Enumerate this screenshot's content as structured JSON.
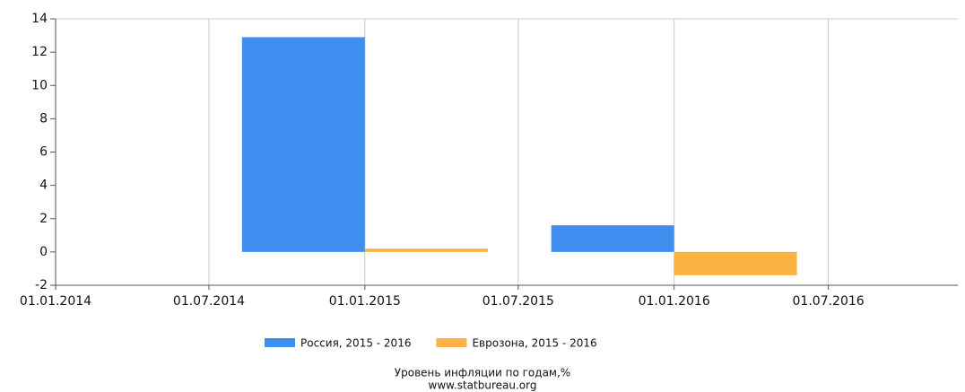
{
  "chart_data": {
    "type": "bar",
    "x": [
      "01.01.2015",
      "01.01.2016"
    ],
    "series": [
      {
        "name": "Россия, 2015 - 2016",
        "color": "#3f8ef0",
        "values": [
          12.9,
          1.6
        ]
      },
      {
        "name": "Еврозона, 2015 - 2016",
        "color": "#fbb444",
        "values": [
          0.2,
          -1.4
        ]
      }
    ],
    "xlim": [
      "01.01.2014",
      "01.12.2016"
    ],
    "xticks": [
      "01.01.2014",
      "01.07.2014",
      "01.01.2015",
      "01.07.2015",
      "01.01.2016",
      "01.07.2016"
    ],
    "ylim": [
      -2,
      14
    ],
    "yticks": [
      -2,
      0,
      2,
      4,
      6,
      8,
      10,
      12,
      14
    ],
    "grid": true,
    "legend": "bottom",
    "caption": "Уровень инфляции по годам,%",
    "source": "www.statbureau.org"
  }
}
